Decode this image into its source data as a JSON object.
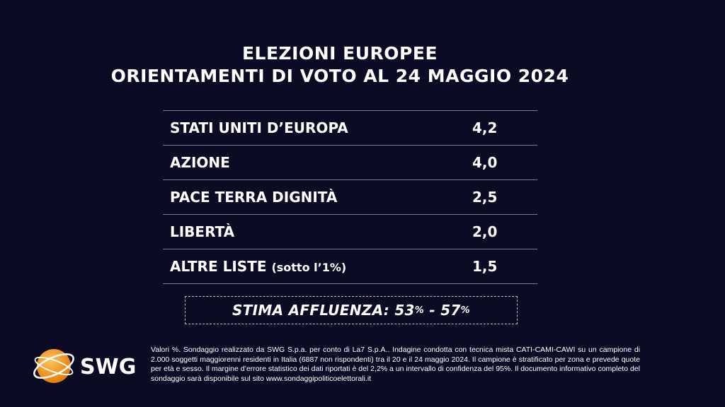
{
  "title": {
    "line1": "ELEZIONI EUROPEE",
    "line2": "ORIENTAMENTI DI VOTO AL 24 MAGGIO 2024"
  },
  "chart_data": {
    "type": "table",
    "title": "ELEZIONI EUROPEE ORIENTAMENTI DI VOTO AL 24 MAGGIO 2024",
    "rows": [
      {
        "label": "STATI UNITI D’EUROPA",
        "note": "",
        "value": "4,2"
      },
      {
        "label": "AZIONE",
        "note": "",
        "value": "4,0"
      },
      {
        "label": "PACE TERRA DIGNITÀ",
        "note": "",
        "value": "2,5"
      },
      {
        "label": "LIBERTÀ",
        "note": "",
        "value": "2,0"
      },
      {
        "label": "ALTRE LISTE",
        "note": "(sotto l’1%)",
        "value": "1,5"
      }
    ]
  },
  "turnout": {
    "label": "STIMA AFFLUENZA:",
    "low": "53",
    "high": "57",
    "unit": "%",
    "separator": "-"
  },
  "logo": {
    "text": "SWG",
    "colors": {
      "orange": "#f39a1e",
      "white": "#ffffff"
    }
  },
  "footnote": "Valori %. Sondaggio realizzato da SWG S.p.a. per conto di La7 S.p.A.. Indagine condotta con tecnica mista CATI-CAMI-CAWI su un campione di 2.000 soggetti maggiorenni residenti in Italia (6887 non rispondenti) tra il 20 e il 24 maggio 2024. Il campione è stratificato per zona e prevede quote per età e sesso. Il margine d’errore statistico dei dati riportati è del 2,2% a un intervallo di confidenza del 95%. Il documento informativo completo del sondaggio sarà disponibile sul sito www.sondaggipoliticoelettorali.it",
  "colors": {
    "background": "#0b0b26",
    "text": "#ffffff",
    "rule": "#7c7c90"
  }
}
